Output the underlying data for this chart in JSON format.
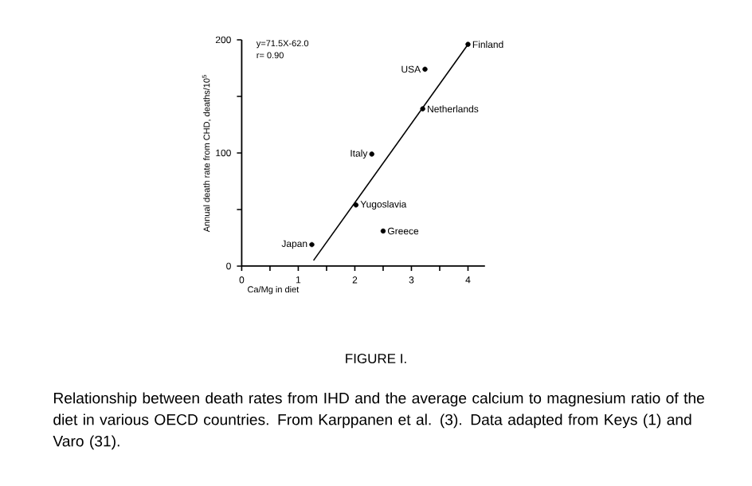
{
  "chart_data": {
    "type": "scatter",
    "title": "FIGURE I.",
    "xlabel": "Ca/Mg in diet",
    "ylabel": "Annual death rate from CHD, deaths/10$^{5}$",
    "xlim": [
      0,
      4.3
    ],
    "ylim": [
      0,
      200
    ],
    "xticks": [
      0,
      {
        "value": 0.5,
        "label": null
      },
      1,
      {
        "value": 1.5,
        "label": null
      },
      2,
      {
        "value": 2.5,
        "label": null
      },
      3,
      {
        "value": 3.5,
        "label": null
      },
      4
    ],
    "yticks": [
      0,
      {
        "value": 50,
        "label": null
      },
      100,
      {
        "value": 150,
        "label": null
      },
      200
    ],
    "series": [
      {
        "color": "#000000",
        "x": [
          1.24,
          2.02,
          2.3,
          2.5,
          3.2,
          3.24,
          4.0
        ],
        "values": [
          19,
          54,
          99,
          31,
          139,
          174,
          196
        ]
      },
      {
        "type": "line",
        "marker": "none",
        "color": "#000000",
        "x": [
          1.27,
          4.0
        ],
        "values": [
          5,
          196
        ]
      }
    ],
    "marker": "circle",
    "grid": false,
    "annotations": [
      "y=71.5X-62.0",
      "r= 0.90",
      {
        "text": "Japan",
        "x": 1.24,
        "y": 19
      },
      {
        "text": "Yugoslavia",
        "x": 2.02,
        "y": 54
      },
      {
        "text": "Italy",
        "x": 2.3,
        "y": 99
      },
      {
        "text": "Greece",
        "x": 2.5,
        "y": 31
      },
      {
        "text": "Netherlands",
        "x": 3.2,
        "y": 139
      },
      {
        "text": "USA",
        "x": 3.24,
        "y": 174
      },
      {
        "text": "Finland",
        "x": 4.0,
        "y": 196
      },
      "Relationship between death rates from IHD and the average calcium to magnesium ratio of the diet in various OECD countries.  From Karppanen et al. (3).  Data adapted from Keys (1) and Varo (31)."
    ]
  }
}
